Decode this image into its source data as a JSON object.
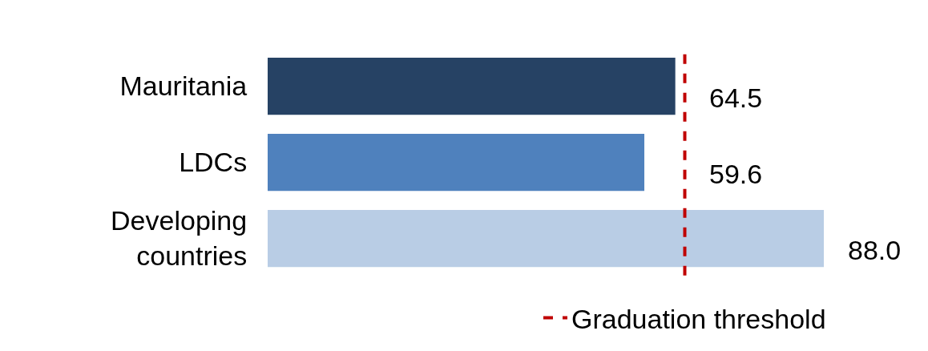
{
  "chart_data": {
    "type": "bar",
    "orientation": "horizontal",
    "categories": [
      "Mauritania",
      "LDCs",
      "Developing countries"
    ],
    "values": [
      64.5,
      59.6,
      88.0
    ],
    "colors": [
      "#264264",
      "#4f81bd",
      "#b9cde5"
    ],
    "value_labels": [
      "64.5",
      "59.6",
      "88.0"
    ],
    "xlim": [
      0,
      88
    ],
    "tick_labels": "y",
    "grid": false,
    "legend": "bottom",
    "ref_lines": [
      {
        "axis": "x",
        "value": 66,
        "label": "Graduation threshold",
        "color": "#c00000",
        "line_style": "dashed"
      }
    ]
  }
}
